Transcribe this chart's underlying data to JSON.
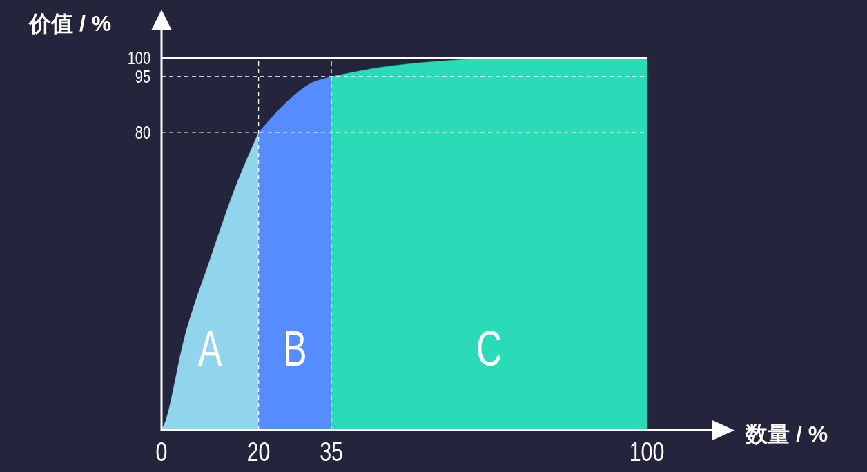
{
  "chart_data": {
    "type": "area",
    "xlabel": "数量 / %",
    "ylabel": "价值 / %",
    "xlim": [
      0,
      100
    ],
    "ylim": [
      0,
      100
    ],
    "xticks": [
      0,
      20,
      35,
      100
    ],
    "yticks": [
      80,
      95,
      100
    ],
    "series": [
      {
        "color": "#90d5ec",
        "x": [
          0,
          1,
          4.7,
          10,
          15.3,
          20
        ],
        "values": [
          0,
          3,
          24.6,
          45.8,
          65.5,
          80
        ]
      },
      {
        "color": "#558cff",
        "x": [
          20,
          25.5,
          30.5,
          35
        ],
        "values": [
          80,
          87.8,
          93,
          95
        ]
      },
      {
        "color": "#2adbb7",
        "x": [
          35,
          45.3,
          55.1,
          67.4,
          69.6,
          100
        ],
        "values": [
          95,
          97.5,
          98.9,
          99.9,
          100,
          100
        ]
      }
    ],
    "ref_lines": [
      {
        "axis": "y",
        "value": 100,
        "line_style": "solid",
        "color": "#ffffff"
      },
      {
        "axis": "y",
        "value": 95,
        "line_style": "dashed",
        "color": "#ffffff"
      },
      {
        "axis": "y",
        "value": 80,
        "line_style": "dashed",
        "color": "#ffffff"
      },
      {
        "axis": "x",
        "value": 20,
        "line_style": "dashed",
        "color": "#ffffff"
      },
      {
        "axis": "x",
        "value": 35,
        "line_style": "dashed",
        "color": "#ffffff"
      }
    ],
    "annotations": [
      "A",
      "B",
      "C"
    ]
  }
}
